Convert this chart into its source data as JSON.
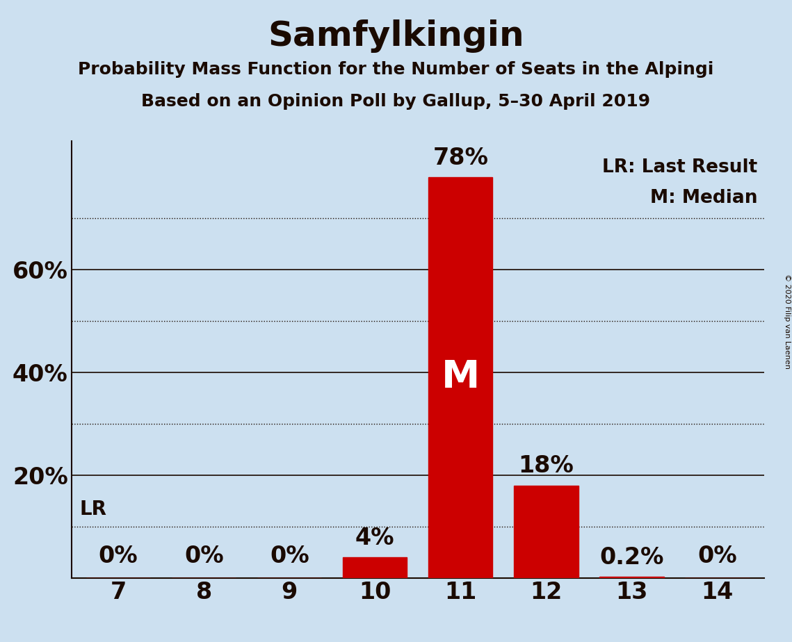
{
  "title": "Samfylkingin",
  "subtitle1": "Probability Mass Function for the Number of Seats in the Alpingi",
  "subtitle2": "Based on an Opinion Poll by Gallup, 5–30 April 2019",
  "copyright": "© 2020 Filip van Laenen",
  "categories": [
    7,
    8,
    9,
    10,
    11,
    12,
    13,
    14
  ],
  "values": [
    0.0,
    0.0,
    0.0,
    4.0,
    78.0,
    18.0,
    0.2,
    0.0
  ],
  "bar_color": "#cc0000",
  "background_color": "#cce0f0",
  "text_color": "#1a0a00",
  "ylim": [
    0,
    85
  ],
  "solid_yticks": [
    20,
    40,
    60
  ],
  "solid_ytick_labels": [
    "20%",
    "40%",
    "60%"
  ],
  "dotted_yticks": [
    10,
    30,
    50,
    70
  ],
  "lr_seat": 10,
  "lr_value": 10.0,
  "median_seat": 11,
  "legend_lr": "LR: Last Result",
  "legend_m": "M: Median",
  "bar_labels": [
    "0%",
    "0%",
    "0%",
    "4%",
    "78%",
    "18%",
    "0.2%",
    "0%"
  ],
  "median_label": "M",
  "lr_label": "LR"
}
